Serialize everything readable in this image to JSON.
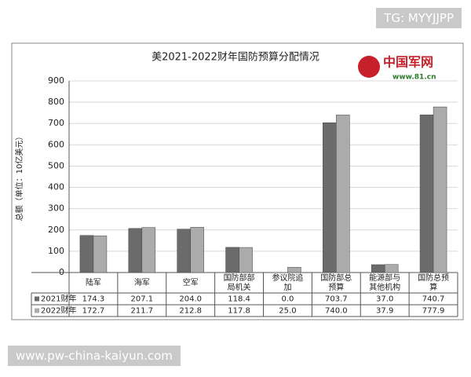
{
  "chart_data": {
    "type": "bar",
    "title": "美2021-2022财年国防预算分配情况",
    "y_label": "总额（单位：10亿美元）",
    "categories": [
      "陆军",
      "海军",
      "空军",
      "国防部部局机关",
      "参议院追加",
      "国防部总预算",
      "能源部与其他机构",
      "国防总预算"
    ],
    "series": [
      {
        "name": "2021财年",
        "color": "#6b6b6b",
        "values": [
          174.3,
          207.1,
          204.0,
          118.4,
          0.0,
          703.7,
          37.0,
          740.7
        ],
        "value_labels": [
          "174.3",
          "207.1",
          "204.0",
          "118.4",
          "0.0",
          "703.7",
          "37.0",
          "740.7"
        ]
      },
      {
        "name": "2022财年",
        "color": "#ababab",
        "values": [
          172.7,
          211.7,
          212.8,
          117.8,
          25.0,
          740.0,
          37.9,
          777.9
        ],
        "value_labels": [
          "172.7",
          "211.7",
          "212.8",
          "117.8",
          "25.0",
          "740.0",
          "37.9",
          "777.9"
        ]
      }
    ],
    "ylim": [
      0,
      900
    ],
    "yticks": [
      0,
      100,
      200,
      300,
      400,
      500,
      600,
      700,
      800,
      900
    ],
    "grid": true
  },
  "logo": {
    "name": "中国军网",
    "url": "www.81.cn"
  },
  "watermark_top": "TG: MYYJJPP",
  "watermark_bottom": "www.pw-china-kaiyun.com"
}
